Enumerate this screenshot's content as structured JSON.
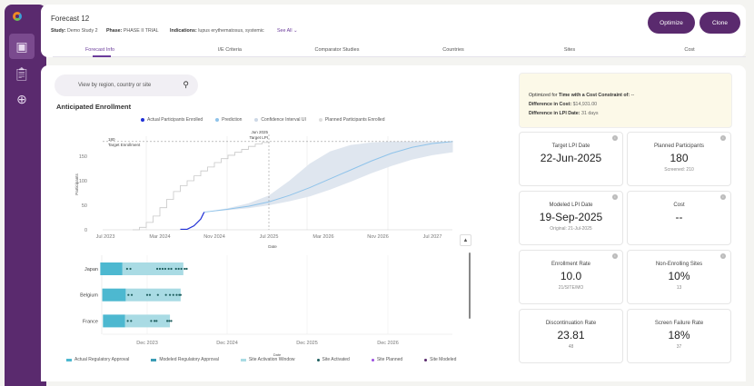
{
  "sidebar": {
    "items": [
      {
        "icon": "dashboard-icon"
      },
      {
        "icon": "clipboard-icon"
      },
      {
        "icon": "globe-icon"
      }
    ]
  },
  "header": {
    "title": "Forecast 12",
    "study_label": "Study:",
    "study": "Demo Study 2",
    "phase_label": "Phase:",
    "phase": "PHASE II TRIAL",
    "indications_label": "Indications:",
    "indications": "lupus erythematosus, systemic",
    "see_all": "See All",
    "optimize": "Optimize",
    "clone": "Clone",
    "tabs": [
      "Forecast Info",
      "I/E Criteria",
      "Comparator Studies",
      "Countries",
      "Sites",
      "Cost"
    ],
    "active_tab": 0
  },
  "search": {
    "placeholder": "View by region, country or site"
  },
  "section_title": "Anticipated Enrollment",
  "colors": {
    "brand": "#5a2a6e",
    "actual": "#1f2fd6",
    "prediction": "#8fc3ea",
    "ci": "#dfe6ef",
    "planned": "#c8c8c8",
    "approval": "#4db8d0",
    "window": "#a9dbe4",
    "site_activated": "#1f5f5f",
    "site_planned": "#9b4de0",
    "site_modeled": "#5a2a6e"
  },
  "chart_data": [
    {
      "type": "line",
      "xlabel": "Date",
      "ylabel": "Participants",
      "ylim": [
        0,
        180
      ],
      "xlim": [
        "2023-07",
        "2027-10"
      ],
      "xticks": [
        "Jul 2023",
        "Mar 2024",
        "Nov 2024",
        "Jul 2025",
        "Mar 2026",
        "Nov 2026",
        "Jul 2027"
      ],
      "yticks": [
        0,
        50,
        100,
        150
      ],
      "annotations": [
        {
          "text": "180",
          "text2": "Target Enrollment",
          "y": 180
        },
        {
          "text": "Jun 2025",
          "text2": "Target LPI",
          "x": "2025-07"
        }
      ],
      "legend": [
        "Actual Participants Enrolled",
        "Prediction",
        "Confidence Interval UI",
        "Planned Participants Enrolled"
      ],
      "series": [
        {
          "name": "Planned Participants Enrolled",
          "points": [
            [
              "2023-11",
              0
            ],
            [
              "2023-12",
              5
            ],
            [
              "2024-01",
              15
            ],
            [
              "2024-02",
              28
            ],
            [
              "2024-03",
              45
            ],
            [
              "2024-04",
              62
            ],
            [
              "2024-05",
              78
            ],
            [
              "2024-06",
              90
            ],
            [
              "2024-07",
              100
            ],
            [
              "2024-08",
              110
            ],
            [
              "2024-09",
              120
            ],
            [
              "2024-10",
              128
            ],
            [
              "2024-11",
              137
            ],
            [
              "2024-12",
              145
            ],
            [
              "2025-01",
              152
            ],
            [
              "2025-02",
              158
            ],
            [
              "2025-03",
              164
            ],
            [
              "2025-04",
              170
            ],
            [
              "2025-05",
              175
            ],
            [
              "2025-06",
              178
            ],
            [
              "2025-07",
              180
            ]
          ]
        },
        {
          "name": "Actual Participants Enrolled",
          "points": [
            [
              "2024-06",
              1
            ],
            [
              "2024-07",
              1
            ],
            [
              "2024-08",
              8
            ],
            [
              "2024-09",
              22
            ],
            [
              "2024-09.5",
              36
            ]
          ]
        },
        {
          "name": "Prediction",
          "points": [
            [
              "2024-09.5",
              36
            ],
            [
              "2025-01",
              42
            ],
            [
              "2025-04",
              48
            ],
            [
              "2025-07",
              57
            ],
            [
              "2025-10",
              70
            ],
            [
              "2026-01",
              86
            ],
            [
              "2026-04",
              104
            ],
            [
              "2026-07",
              122
            ],
            [
              "2026-10",
              140
            ],
            [
              "2027-01",
              156
            ],
            [
              "2027-04",
              168
            ],
            [
              "2027-07",
              176
            ],
            [
              "2027-10",
              180
            ]
          ]
        },
        {
          "name": "Confidence Interval UI",
          "lower": [
            [
              "2024-09.5",
              36
            ],
            [
              "2025-01",
              40
            ],
            [
              "2025-04",
              44
            ],
            [
              "2025-07",
              50
            ],
            [
              "2025-10",
              58
            ],
            [
              "2026-01",
              68
            ],
            [
              "2026-04",
              82
            ],
            [
              "2026-07",
              98
            ],
            [
              "2026-10",
              115
            ],
            [
              "2027-01",
              130
            ],
            [
              "2027-04",
              143
            ],
            [
              "2027-07",
              152
            ],
            [
              "2027-10",
              158
            ]
          ],
          "upper": [
            [
              "2024-09.5",
              36
            ],
            [
              "2025-01",
              44
            ],
            [
              "2025-04",
              54
            ],
            [
              "2025-07",
              70
            ],
            [
              "2025-10",
              100
            ],
            [
              "2026-01",
              135
            ],
            [
              "2026-04",
              160
            ],
            [
              "2026-07",
              173
            ],
            [
              "2026-10",
              178
            ],
            [
              "2027-01",
              180
            ],
            [
              "2027-10",
              180
            ]
          ]
        }
      ]
    },
    {
      "type": "gantt",
      "xlabel": "Date",
      "xticks": [
        "Dec 2023",
        "Dec 2024",
        "Dec 2025",
        "Dec 2026"
      ],
      "legend": [
        "Actual Regulatory Approval",
        "Modeled Regulatory Approval",
        "Site Activation Window",
        "Site Activated",
        "Site Planned",
        "Site Modeled"
      ],
      "rows": [
        {
          "country": "Japan",
          "approval": [
            "2023-05",
            "2023-08.3"
          ],
          "window": [
            "2023-08.3",
            "2024-05.4"
          ],
          "sites": [
            "2023-09",
            "2023-09.5",
            "2024-01.5",
            "2024-01.9",
            "2024-02.3",
            "2024-02.7",
            "2024-03.2",
            "2024-03.6",
            "2024-04.3",
            "2024-04.7",
            "2024-05.1",
            "2024-05.6",
            "2024-05.9"
          ]
        },
        {
          "country": "Belgium",
          "approval": [
            "2023-05.3",
            "2023-08.8"
          ],
          "window": [
            "2023-08.8",
            "2024-05"
          ],
          "sites": [
            "2023-09.2",
            "2023-09.7",
            "2023-12",
            "2023-12.4",
            "2024-01.6",
            "2024-02.8",
            "2024-03.4",
            "2024-03.9",
            "2024-04.4",
            "2024-04.8",
            "2024-05"
          ]
        },
        {
          "country": "France",
          "approval": [
            "2023-05.4",
            "2023-08.7"
          ],
          "window": [
            "2023-08.7",
            "2024-03.4"
          ],
          "sites": [
            "2023-09.1",
            "2023-09.6",
            "2023-12.6",
            "2024-01.1",
            "2024-01.4",
            "2024-03",
            "2024-03.3",
            "2024-03.6"
          ]
        }
      ]
    }
  ],
  "optimization": {
    "line1_a": "Optimized for ",
    "line1_b": "Time with a Cost Constraint of:",
    "line1_c": " --",
    "cost_label": "Difference in Cost:",
    "cost": "$14,931.00",
    "lpi_label": "Difference in LPI Date:",
    "lpi": "31 days"
  },
  "cards": [
    {
      "label": "Target LPI Date",
      "value": "22-Jun-2025",
      "sub": ""
    },
    {
      "label": "Planned Participants",
      "value": "180",
      "sub": "Screened: 210"
    },
    {
      "label": "Modeled LPI Date",
      "value": "19-Sep-2025",
      "sub": "Original: 21-Jul-2025"
    },
    {
      "label": "Cost",
      "value": "--",
      "sub": ""
    },
    {
      "label": "Enrollment Rate",
      "value": "10.0",
      "sub": "21/SITE/MO"
    },
    {
      "label": "Non-Enrolling Sites",
      "value": "10%",
      "sub": "13"
    },
    {
      "label": "Discontinuation Rate",
      "value": "23.81",
      "sub": "48"
    },
    {
      "label": "Screen Failure Rate",
      "value": "18%",
      "sub": "37"
    }
  ]
}
